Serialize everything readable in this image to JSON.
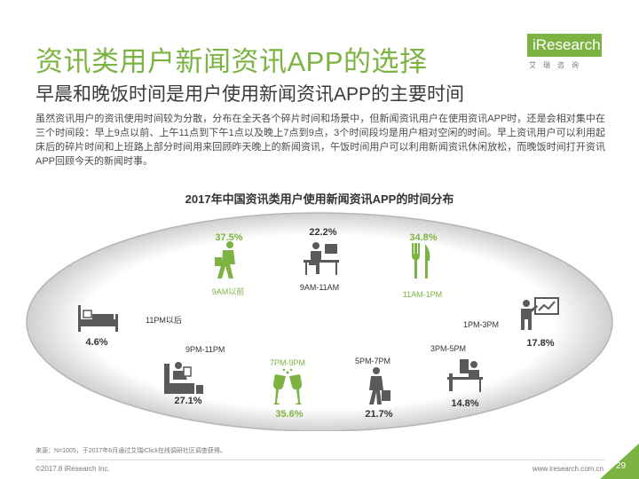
{
  "title": "资讯类用户新闻资讯APP的选择",
  "subtitle": "早晨和晚饭时间是用户使用新闻资讯APP的主要时间",
  "body": "虽然资讯用户的资讯使用时间较为分散，分布在全天各个碎片时间和场景中，但新闻资讯用户在使用资讯APP时，还是会相对集中在三个时间段：早上9点以前、上午11点到下午1点以及晚上7点到9点，3个时间段均是用户相对空闲的时间。早上资讯用户可以利用起床后的碎片时间和上班路上部分时间用来回顾昨天晚上的新闻资讯，午饭时间用户可以利用新闻资讯休闲放松，而晚饭时间打开资讯APP回顾今天的新闻时事。",
  "logo": {
    "main": "iResearch",
    "sub": "艾瑞咨询"
  },
  "source": "来源：N=1005，于2017年6月通过艾瑞iClick在线调研社区调查获得。",
  "footer": {
    "left": "©2017.8 iResearch Inc.",
    "right": "www.iresearch.com.cn",
    "page": "29"
  },
  "colors": {
    "green": "#7cb342",
    "dark": "#333333",
    "gray": "#5a5a5a",
    "ellipse": "#b5b5b5"
  },
  "chart_data": {
    "type": "table",
    "title": "2017年中国资讯类用户使用新闻资讯APP的时间分布",
    "categories": [
      "9AM以前",
      "9AM-11AM",
      "11AM-1PM",
      "1PM-3PM",
      "3PM-5PM",
      "5PM-7PM",
      "7PM-9PM",
      "9PM-11PM",
      "11PM以后"
    ],
    "values": [
      "37.5%",
      "22.2%",
      "34.8%",
      "17.8%",
      "14.8%",
      "21.7%",
      "35.6%",
      "27.1%",
      "4.6%"
    ],
    "numeric_values": [
      37.5,
      22.2,
      34.8,
      17.8,
      14.8,
      21.7,
      35.6,
      27.1,
      4.6
    ],
    "highlighted": [
      true,
      false,
      true,
      false,
      false,
      false,
      true,
      false,
      false
    ],
    "icons": [
      "walking-person-icon",
      "office-desk-icon",
      "fork-knife-icon",
      "presentation-icon",
      "desk-worker-icon",
      "commuter-icon",
      "wine-glasses-icon",
      "sofa-reading-icon",
      "bed-icon"
    ]
  }
}
